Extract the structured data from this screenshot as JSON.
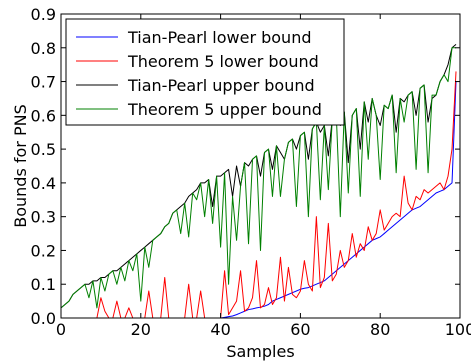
{
  "chart_data": {
    "type": "line",
    "title": "",
    "xlabel": "Samples",
    "ylabel": "Bounds for PNS",
    "xlim": [
      0,
      100
    ],
    "ylim": [
      0,
      0.9
    ],
    "grid": false,
    "legend_position": "top-left",
    "x_ticks": [
      0,
      20,
      40,
      60,
      80,
      100
    ],
    "y_ticks": [
      0.0,
      0.1,
      0.2,
      0.3,
      0.4,
      0.5,
      0.6,
      0.7,
      0.8,
      0.9
    ],
    "x_tick_labels": [
      "0",
      "20",
      "40",
      "60",
      "80",
      "100"
    ],
    "y_tick_labels": [
      "0.0",
      "0.1",
      "0.2",
      "0.3",
      "0.4",
      "0.5",
      "0.6",
      "0.7",
      "0.8",
      "0.9"
    ],
    "x": [
      0,
      1,
      2,
      3,
      4,
      5,
      6,
      7,
      8,
      9,
      10,
      11,
      12,
      13,
      14,
      15,
      16,
      17,
      18,
      19,
      20,
      21,
      22,
      23,
      24,
      25,
      26,
      27,
      28,
      29,
      30,
      31,
      32,
      33,
      34,
      35,
      36,
      37,
      38,
      39,
      40,
      41,
      42,
      43,
      44,
      45,
      46,
      47,
      48,
      49,
      50,
      51,
      52,
      53,
      54,
      55,
      56,
      57,
      58,
      59,
      60,
      61,
      62,
      63,
      64,
      65,
      66,
      67,
      68,
      69,
      70,
      71,
      72,
      73,
      74,
      75,
      76,
      77,
      78,
      79,
      80,
      81,
      82,
      83,
      84,
      85,
      86,
      87,
      88,
      89,
      90,
      91,
      92,
      93,
      94,
      95,
      96,
      97,
      98,
      99
    ],
    "series": [
      {
        "name": "Tian-Pearl lower bound",
        "color": "#0000ff",
        "values": [
          0,
          0,
          0,
          0,
          0,
          0,
          0,
          0,
          0,
          0,
          0,
          0,
          0,
          0,
          0,
          0,
          0,
          0,
          0,
          0,
          0,
          0,
          0,
          0,
          0,
          0,
          0,
          0,
          0,
          0,
          0,
          0,
          0,
          0,
          0,
          0,
          0,
          0,
          0,
          0,
          0,
          0.002,
          0.004,
          0.006,
          0.01,
          0.015,
          0.02,
          0.025,
          0.027,
          0.03,
          0.032,
          0.035,
          0.04,
          0.05,
          0.055,
          0.06,
          0.065,
          0.07,
          0.075,
          0.08,
          0.085,
          0.088,
          0.09,
          0.095,
          0.1,
          0.105,
          0.11,
          0.12,
          0.13,
          0.14,
          0.15,
          0.16,
          0.17,
          0.18,
          0.19,
          0.2,
          0.21,
          0.22,
          0.23,
          0.235,
          0.24,
          0.25,
          0.26,
          0.27,
          0.28,
          0.29,
          0.3,
          0.31,
          0.32,
          0.325,
          0.33,
          0.34,
          0.35,
          0.36,
          0.37,
          0.375,
          0.38,
          0.39,
          0.4,
          0.7
        ]
      },
      {
        "name": "Theorem 5 lower bound",
        "color": "#ff0000",
        "values": [
          0,
          0,
          0,
          0,
          0,
          0,
          0,
          0,
          0,
          0,
          0.06,
          0.02,
          0,
          0,
          0.05,
          0,
          0,
          0.03,
          0,
          0,
          0,
          0,
          0.08,
          0,
          0,
          0,
          0.12,
          0,
          0,
          0,
          0,
          0,
          0.1,
          0,
          0,
          0.08,
          0,
          0,
          0,
          0,
          0,
          0.14,
          0.01,
          0.03,
          0.05,
          0.14,
          0.02,
          0.03,
          0.06,
          0.17,
          0.03,
          0.04,
          0.09,
          0.04,
          0.06,
          0.18,
          0.05,
          0.15,
          0.07,
          0.06,
          0.08,
          0.17,
          0.1,
          0.08,
          0.3,
          0.09,
          0.12,
          0.28,
          0.11,
          0.13,
          0.2,
          0.15,
          0.17,
          0.25,
          0.18,
          0.22,
          0.2,
          0.27,
          0.23,
          0.25,
          0.32,
          0.26,
          0.28,
          0.3,
          0.31,
          0.3,
          0.42,
          0.34,
          0.32,
          0.36,
          0.35,
          0.38,
          0.37,
          0.38,
          0.39,
          0.4,
          0.38,
          0.42,
          0.5,
          0.73
        ]
      },
      {
        "name": "Tian-Pearl upper bound",
        "color": "#000000",
        "values": [
          0.03,
          0.04,
          0.05,
          0.07,
          0.08,
          0.09,
          0.1,
          0.1,
          0.11,
          0.11,
          0.12,
          0.12,
          0.13,
          0.14,
          0.14,
          0.15,
          0.16,
          0.17,
          0.18,
          0.19,
          0.2,
          0.21,
          0.22,
          0.23,
          0.24,
          0.25,
          0.27,
          0.28,
          0.31,
          0.32,
          0.33,
          0.34,
          0.36,
          0.37,
          0.38,
          0.4,
          0.4,
          0.41,
          0.33,
          0.42,
          0.42,
          0.43,
          0.44,
          0.36,
          0.45,
          0.39,
          0.46,
          0.45,
          0.47,
          0.48,
          0.42,
          0.49,
          0.5,
          0.44,
          0.51,
          0.49,
          0.47,
          0.52,
          0.53,
          0.5,
          0.54,
          0.55,
          0.47,
          0.56,
          0.58,
          0.55,
          0.57,
          0.48,
          0.59,
          0.6,
          0.57,
          0.61,
          0.46,
          0.6,
          0.62,
          0.5,
          0.64,
          0.58,
          0.65,
          0.6,
          0.57,
          0.63,
          0.62,
          0.66,
          0.55,
          0.65,
          0.64,
          0.66,
          0.67,
          0.6,
          0.68,
          0.69,
          0.58,
          0.65,
          0.66,
          0.7,
          0.72,
          0.75,
          0.8,
          0.81
        ]
      },
      {
        "name": "Theorem 5 upper bound",
        "color": "#008000",
        "values": [
          0.03,
          0.04,
          0.05,
          0.07,
          0.08,
          0.09,
          0.1,
          0.06,
          0.11,
          0.03,
          0.12,
          0.08,
          0.13,
          0.14,
          0.1,
          0.15,
          0.11,
          0.17,
          0.14,
          0.19,
          0.05,
          0.21,
          0.15,
          0.23,
          0.24,
          0.25,
          0.27,
          0.28,
          0.31,
          0.32,
          0.25,
          0.34,
          0.24,
          0.37,
          0.35,
          0.4,
          0.3,
          0.41,
          0.28,
          0.42,
          0.21,
          0.43,
          0.1,
          0.36,
          0.23,
          0.39,
          0.46,
          0.22,
          0.47,
          0.48,
          0.2,
          0.49,
          0.5,
          0.36,
          0.51,
          0.36,
          0.47,
          0.52,
          0.53,
          0.33,
          0.54,
          0.55,
          0.3,
          0.56,
          0.58,
          0.35,
          0.57,
          0.38,
          0.59,
          0.6,
          0.3,
          0.61,
          0.37,
          0.6,
          0.62,
          0.36,
          0.64,
          0.47,
          0.65,
          0.6,
          0.41,
          0.63,
          0.62,
          0.66,
          0.43,
          0.65,
          0.58,
          0.66,
          0.67,
          0.44,
          0.68,
          0.69,
          0.43,
          0.66,
          0.66,
          0.7,
          0.72,
          0.7,
          0.8,
          0.8
        ]
      }
    ]
  }
}
